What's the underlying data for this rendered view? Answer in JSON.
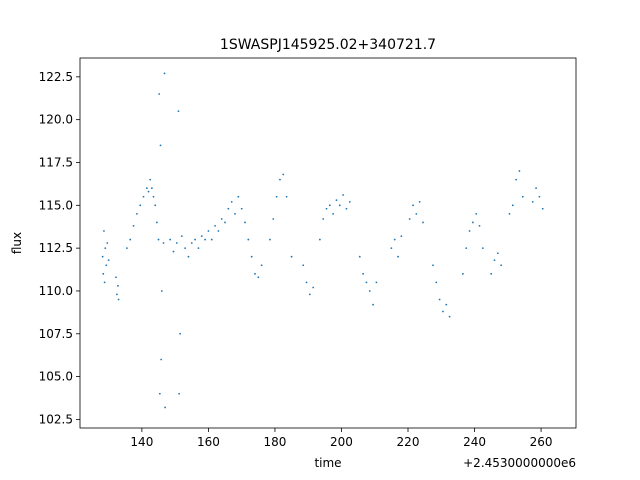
{
  "chart_data": {
    "type": "scatter",
    "title": "1SWASPJ145925.02+340721.7",
    "xlabel": "time",
    "ylabel": "flux",
    "x_offset_label": "+2.4530000000e6",
    "color": "#1f77b4",
    "xlim": [
      2453121.4,
      2453270.5
    ],
    "ylim": [
      102.0,
      123.6
    ],
    "xticks": [
      {
        "value": 2453140,
        "label": "140"
      },
      {
        "value": 2453160,
        "label": "160"
      },
      {
        "value": 2453180,
        "label": "180"
      },
      {
        "value": 2453200,
        "label": "200"
      },
      {
        "value": 2453220,
        "label": "220"
      },
      {
        "value": 2453240,
        "label": "240"
      },
      {
        "value": 2453260,
        "label": "260"
      }
    ],
    "yticks": [
      102.5,
      {
        "value": 105,
        "label": "105.0"
      },
      107.5,
      {
        "value": 110,
        "label": "110.0"
      },
      112.5,
      {
        "value": 115,
        "label": "115.0"
      },
      117.5,
      {
        "value": 120,
        "label": "120.0"
      },
      122.5
    ],
    "x": [
      2453128.2,
      2453128.4,
      2453128.6,
      2453128.8,
      2453129.0,
      2453129.3,
      2453129.6,
      2453130.0,
      2453132.2,
      2453132.5,
      2453132.8,
      2453133.0,
      2453135.5,
      2453136.5,
      2453137.5,
      2453138.5,
      2453139.5,
      2453140.5,
      2453141.5,
      2453142.0,
      2453142.5,
      2453143.0,
      2453143.5,
      2453144.0,
      2453144.5,
      2453145.0,
      2453145.2,
      2453145.4,
      2453145.6,
      2453145.8,
      2453146.0,
      2453146.5,
      2453146.8,
      2453147.0,
      2453148.5,
      2453149.5,
      2453150.5,
      2453151.0,
      2453151.2,
      2453151.5,
      2453152.0,
      2453153.0,
      2453154.0,
      2453155.0,
      2453156.0,
      2453157.0,
      2453158.0,
      2453159.0,
      2453160.0,
      2453161.0,
      2453162.0,
      2453163.0,
      2453164.0,
      2453165.0,
      2453166.0,
      2453167.0,
      2453168.0,
      2453169.0,
      2453170.0,
      2453171.0,
      2453172.0,
      2453173.0,
      2453174.0,
      2453175.0,
      2453176.0,
      2453178.5,
      2453179.5,
      2453180.5,
      2453181.5,
      2453182.5,
      2453183.5,
      2453185.0,
      2453188.5,
      2453189.5,
      2453190.5,
      2453191.5,
      2453193.5,
      2453194.5,
      2453195.5,
      2453196.5,
      2453197.5,
      2453198.5,
      2453199.5,
      2453200.5,
      2453201.5,
      2453202.5,
      2453205.5,
      2453206.5,
      2453207.5,
      2453208.5,
      2453209.5,
      2453210.5,
      2453215.0,
      2453216.0,
      2453217.0,
      2453218.0,
      2453220.5,
      2453221.5,
      2453222.5,
      2453223.5,
      2453224.5,
      2453227.5,
      2453228.5,
      2453229.5,
      2453230.5,
      2453231.5,
      2453232.5,
      2453236.5,
      2453237.5,
      2453238.5,
      2453239.5,
      2453240.5,
      2453241.5,
      2453242.5,
      2453245.0,
      2453246.0,
      2453247.0,
      2453248.0,
      2453250.5,
      2453251.5,
      2453252.5,
      2453253.5,
      2453254.5,
      2453257.5,
      2453258.5,
      2453259.5,
      2453260.5
    ],
    "values": [
      112.0,
      111.0,
      113.5,
      110.5,
      112.5,
      111.5,
      112.8,
      111.8,
      110.8,
      109.8,
      110.3,
      109.5,
      112.5,
      113.0,
      113.8,
      114.5,
      115.0,
      115.5,
      116.0,
      115.8,
      116.5,
      116.0,
      115.5,
      115.0,
      114.0,
      113.0,
      121.5,
      104.0,
      118.5,
      106.0,
      110.0,
      112.8,
      122.7,
      103.2,
      113.0,
      112.3,
      112.8,
      120.5,
      104.0,
      107.5,
      113.2,
      112.5,
      112.0,
      112.8,
      113.0,
      112.5,
      113.2,
      113.0,
      113.5,
      113.0,
      113.8,
      113.5,
      114.2,
      114.0,
      114.8,
      115.2,
      114.5,
      115.5,
      114.8,
      114.0,
      113.0,
      112.0,
      111.0,
      110.8,
      111.5,
      113.0,
      114.2,
      115.5,
      116.5,
      116.8,
      115.5,
      112.0,
      111.5,
      110.5,
      109.8,
      110.2,
      113.0,
      114.2,
      114.8,
      115.0,
      114.5,
      115.3,
      115.0,
      115.6,
      114.8,
      115.2,
      112.0,
      111.0,
      110.5,
      110.0,
      109.2,
      110.5,
      112.5,
      113.0,
      112.0,
      113.2,
      114.2,
      115.0,
      114.5,
      115.2,
      114.0,
      111.5,
      110.5,
      109.5,
      108.8,
      109.2,
      108.5,
      111.0,
      112.5,
      113.5,
      114.0,
      114.5,
      113.8,
      112.5,
      111.0,
      111.8,
      112.2,
      111.5,
      114.5,
      115.0,
      116.5,
      117.0,
      115.5,
      115.2,
      116.0,
      115.5,
      114.8
    ]
  }
}
